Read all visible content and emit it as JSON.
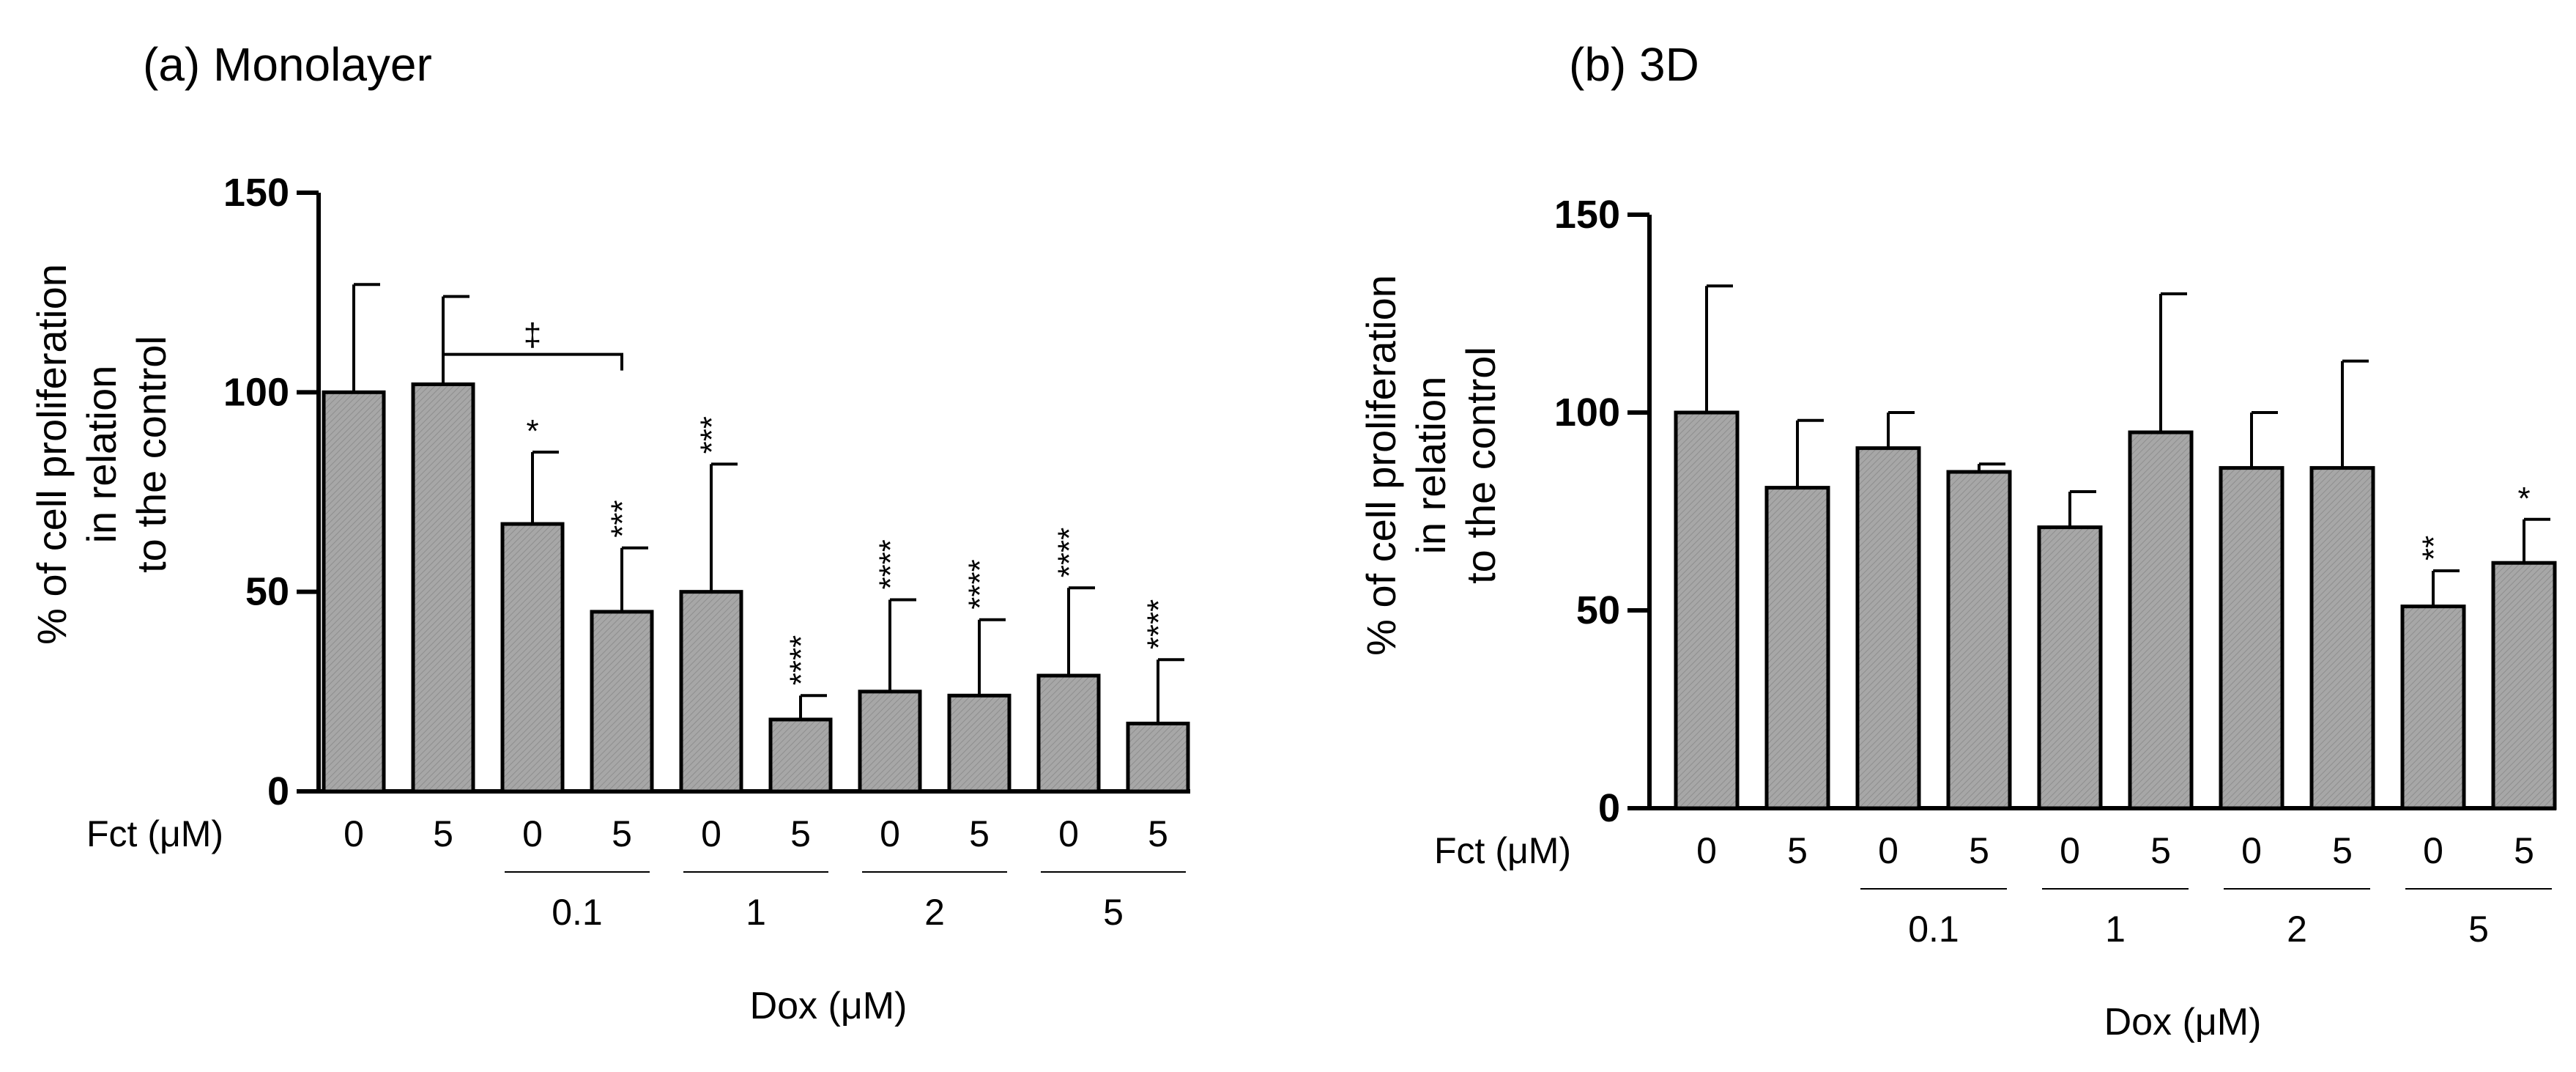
{
  "chart_data": [
    {
      "type": "bar",
      "title": "(a) Monolayer",
      "ylabel": [
        "% of cell proliferation",
        "in relation",
        "to the control"
      ],
      "ylim": [
        0,
        150
      ],
      "yticks": [
        "0",
        "50",
        "100",
        "150"
      ],
      "fct_label": "Fct (μM)",
      "xlabel": "Dox (μM)",
      "categories": [
        "0",
        "5",
        "0",
        "5",
        "0",
        "5",
        "0",
        "5",
        "0",
        "5"
      ],
      "dox_groups": [
        {
          "label": "0.1",
          "from": 2,
          "to": 3
        },
        {
          "label": "1",
          "from": 4,
          "to": 5
        },
        {
          "label": "2",
          "from": 6,
          "to": 7
        },
        {
          "label": "5",
          "from": 8,
          "to": 9
        }
      ],
      "values": [
        100,
        102,
        67,
        45,
        50,
        18,
        25,
        24,
        29,
        17
      ],
      "errors": [
        27,
        22,
        18,
        16,
        32,
        6,
        23,
        19,
        22,
        16
      ],
      "significance": [
        "",
        "",
        "*",
        "***",
        "***",
        "****",
        "****",
        "****",
        "****",
        "****"
      ],
      "bracket": {
        "from": 1,
        "to": 3,
        "label": "‡"
      }
    },
    {
      "type": "bar",
      "title": "(b) 3D",
      "ylabel": [
        "% of cell proliferation",
        "in relation",
        "to the control"
      ],
      "ylim": [
        0,
        150
      ],
      "yticks": [
        "0",
        "50",
        "100",
        "150"
      ],
      "fct_label": "Fct (μM)",
      "xlabel": "Dox (μM)",
      "categories": [
        "0",
        "5",
        "0",
        "5",
        "0",
        "5",
        "0",
        "5",
        "0",
        "5"
      ],
      "dox_groups": [
        {
          "label": "0.1",
          "from": 2,
          "to": 3
        },
        {
          "label": "1",
          "from": 4,
          "to": 5
        },
        {
          "label": "2",
          "from": 6,
          "to": 7
        },
        {
          "label": "5",
          "from": 8,
          "to": 9
        }
      ],
      "values": [
        100,
        81,
        91,
        85,
        71,
        95,
        86,
        86,
        51,
        62
      ],
      "errors": [
        32,
        17,
        9,
        2,
        9,
        35,
        14,
        27,
        9,
        11
      ],
      "significance": [
        "",
        "",
        "",
        "",
        "",
        "",
        "",
        "",
        "**",
        "*"
      ],
      "bracket": null
    }
  ]
}
